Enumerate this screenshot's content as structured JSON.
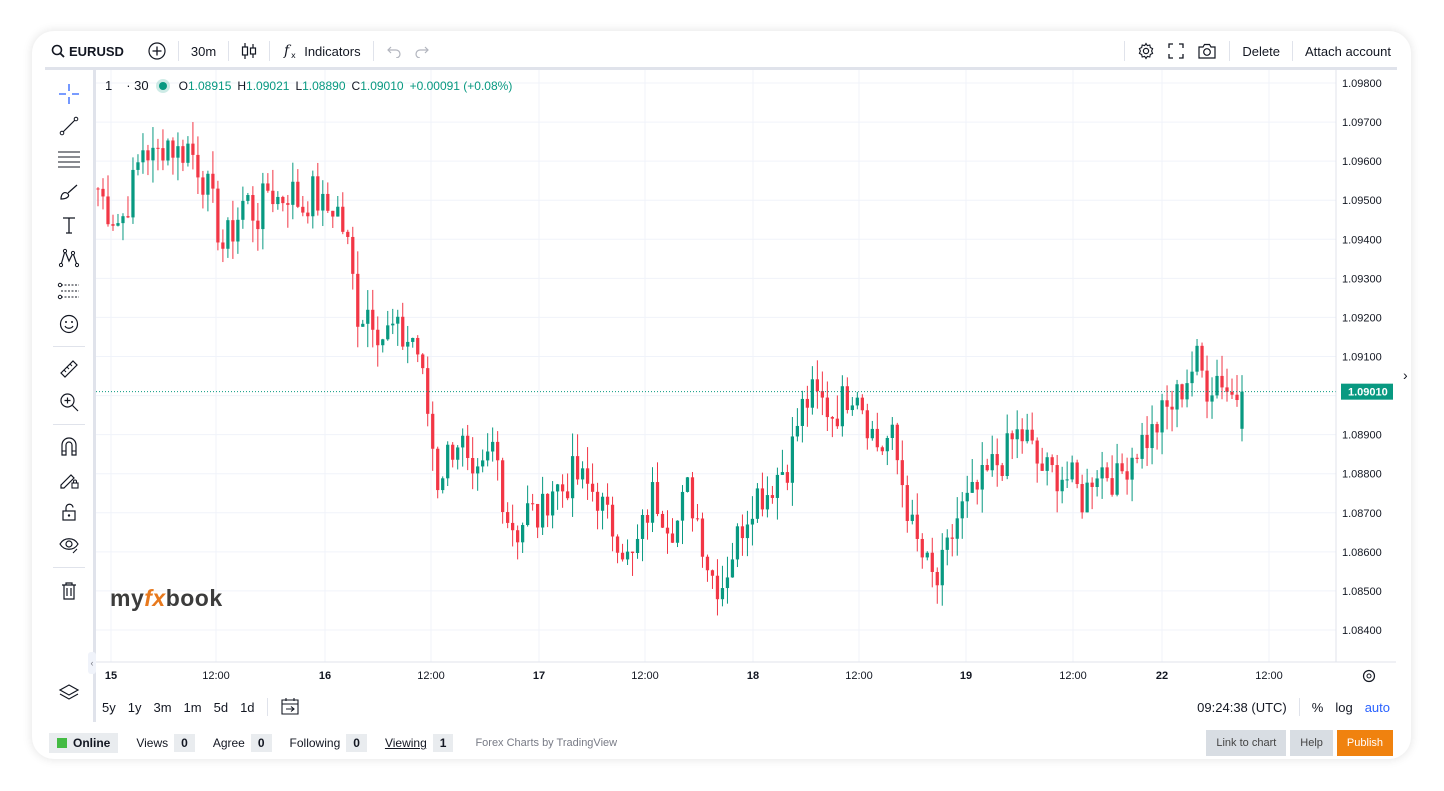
{
  "toolbar": {
    "symbol": "EURUSD",
    "interval": "30m",
    "indicators_label": "Indicators",
    "delete_label": "Delete",
    "attach_label": "Attach account"
  },
  "legend": {
    "interval_num": "1",
    "interval_sep": "· 30",
    "o_label": "O",
    "o_value": "1.08915",
    "h_label": "H",
    "h_value": "1.09021",
    "l_label": "L",
    "l_value": "1.08890",
    "c_label": "C",
    "c_value": "1.09010",
    "change": "+0.00091 (+0.08%)"
  },
  "range": {
    "buttons": [
      "5y",
      "1y",
      "3m",
      "1m",
      "5d",
      "1d"
    ],
    "time": "09:24:38 (UTC)",
    "percent": "%",
    "log": "log",
    "auto": "auto"
  },
  "status": {
    "online": "Online",
    "views_label": "Views",
    "views": "0",
    "agree_label": "Agree",
    "agree": "0",
    "following_label": "Following",
    "following": "0",
    "viewing_label": "Viewing",
    "viewing": "1",
    "credit": "Forex Charts by TradingView",
    "link_label": "Link to chart",
    "help_label": "Help",
    "publish_label": "Publish"
  },
  "logo": {
    "text_a": "my",
    "text_b": "fx",
    "text_c": "book"
  },
  "colors": {
    "up": "#089981",
    "down": "#f23645",
    "price_tag": "#089981"
  },
  "chart_data": {
    "type": "candlestick",
    "ylim": [
      1.0835,
      1.0985
    ],
    "y_ticks": [
      "1.09800",
      "1.09700",
      "1.09600",
      "1.09500",
      "1.09400",
      "1.09300",
      "1.09200",
      "1.09100",
      "1.09000",
      "1.08900",
      "1.08800",
      "1.08700",
      "1.08600",
      "1.08500",
      "1.08400"
    ],
    "x_ticks": [
      "15",
      "12:00",
      "16",
      "12:00",
      "17",
      "12:00",
      "18",
      "12:00",
      "19",
      "12:00",
      "22",
      "12:00"
    ],
    "current_price": "1.09010",
    "grid": true,
    "series": [
      {
        "name": "EURUSD 30m",
        "close_path": [
          1.0953,
          1.0947,
          1.0944,
          1.0953,
          1.0964,
          1.096,
          1.0966,
          1.0962,
          1.0964,
          1.0958,
          1.095,
          1.0938,
          1.0943,
          1.0951,
          1.0945,
          1.0953,
          1.095,
          1.0953,
          1.0948,
          1.0952,
          1.0947,
          1.0949,
          1.0939,
          1.092,
          1.0923,
          1.0915,
          1.0917,
          1.0914,
          1.0915,
          1.0898,
          1.0878,
          1.0886,
          1.089,
          1.0875,
          1.088,
          1.0888,
          1.087,
          1.0865,
          1.0871,
          1.0868,
          1.0877,
          1.0876,
          1.088,
          1.0877,
          1.0875,
          1.0868,
          1.0864,
          1.0856,
          1.0865,
          1.0875,
          1.087,
          1.0866,
          1.0876,
          1.0868,
          1.0855,
          1.0851,
          1.086,
          1.0868,
          1.0875,
          1.0875,
          1.088,
          1.0883,
          1.0896,
          1.09,
          1.0898,
          1.0895,
          1.09,
          1.0903,
          1.0893,
          1.0886,
          1.089,
          1.0878,
          1.0864,
          1.0857,
          1.0851,
          1.086,
          1.087,
          1.0873,
          1.0877,
          1.0882,
          1.0884,
          1.089,
          1.0889,
          1.0882,
          1.088,
          1.088,
          1.0878,
          1.0873,
          1.0882,
          1.0881,
          1.0878,
          1.0884,
          1.0888,
          1.089,
          1.0895,
          1.0898,
          1.0904,
          1.0909,
          1.0902,
          1.0906,
          1.09,
          1.0901
        ]
      }
    ]
  }
}
